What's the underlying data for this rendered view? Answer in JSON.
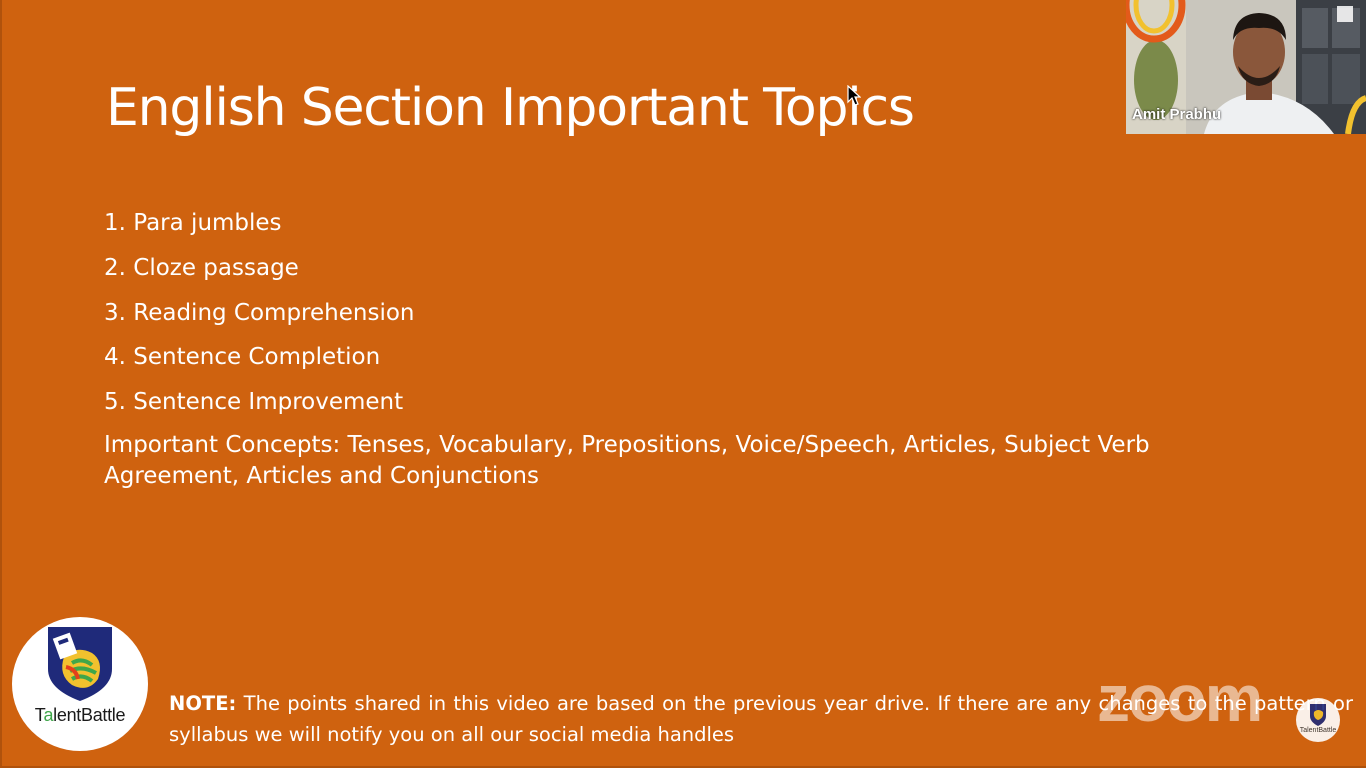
{
  "slide": {
    "title": "English Section Important Topics",
    "topics": [
      "1. Para jumbles",
      "2. Cloze passage",
      "3. Reading Comprehension",
      "4. Sentence Completion",
      "5. Sentence Improvement"
    ],
    "concepts": "Important Concepts: Tenses, Vocabulary, Prepositions, Voice/Speech, Articles, Subject Verb Agreement, Articles and Conjunctions",
    "note_label": "NOTE:",
    "note_text": " The points shared in this video are based on the previous year drive. If there are any changes to the pattern or syllabus we will notify you on all our social media handles"
  },
  "logo": {
    "brand_prefix": "T",
    "brand_a": "a",
    "brand_suffix": "lentBattle",
    "badge_text": "TalentBattle"
  },
  "video": {
    "presenter_name": "Amit Prabhu"
  },
  "watermark": {
    "text": "zoom"
  },
  "colors": {
    "slide_background": "#cf620f",
    "text": "#ffffff"
  }
}
